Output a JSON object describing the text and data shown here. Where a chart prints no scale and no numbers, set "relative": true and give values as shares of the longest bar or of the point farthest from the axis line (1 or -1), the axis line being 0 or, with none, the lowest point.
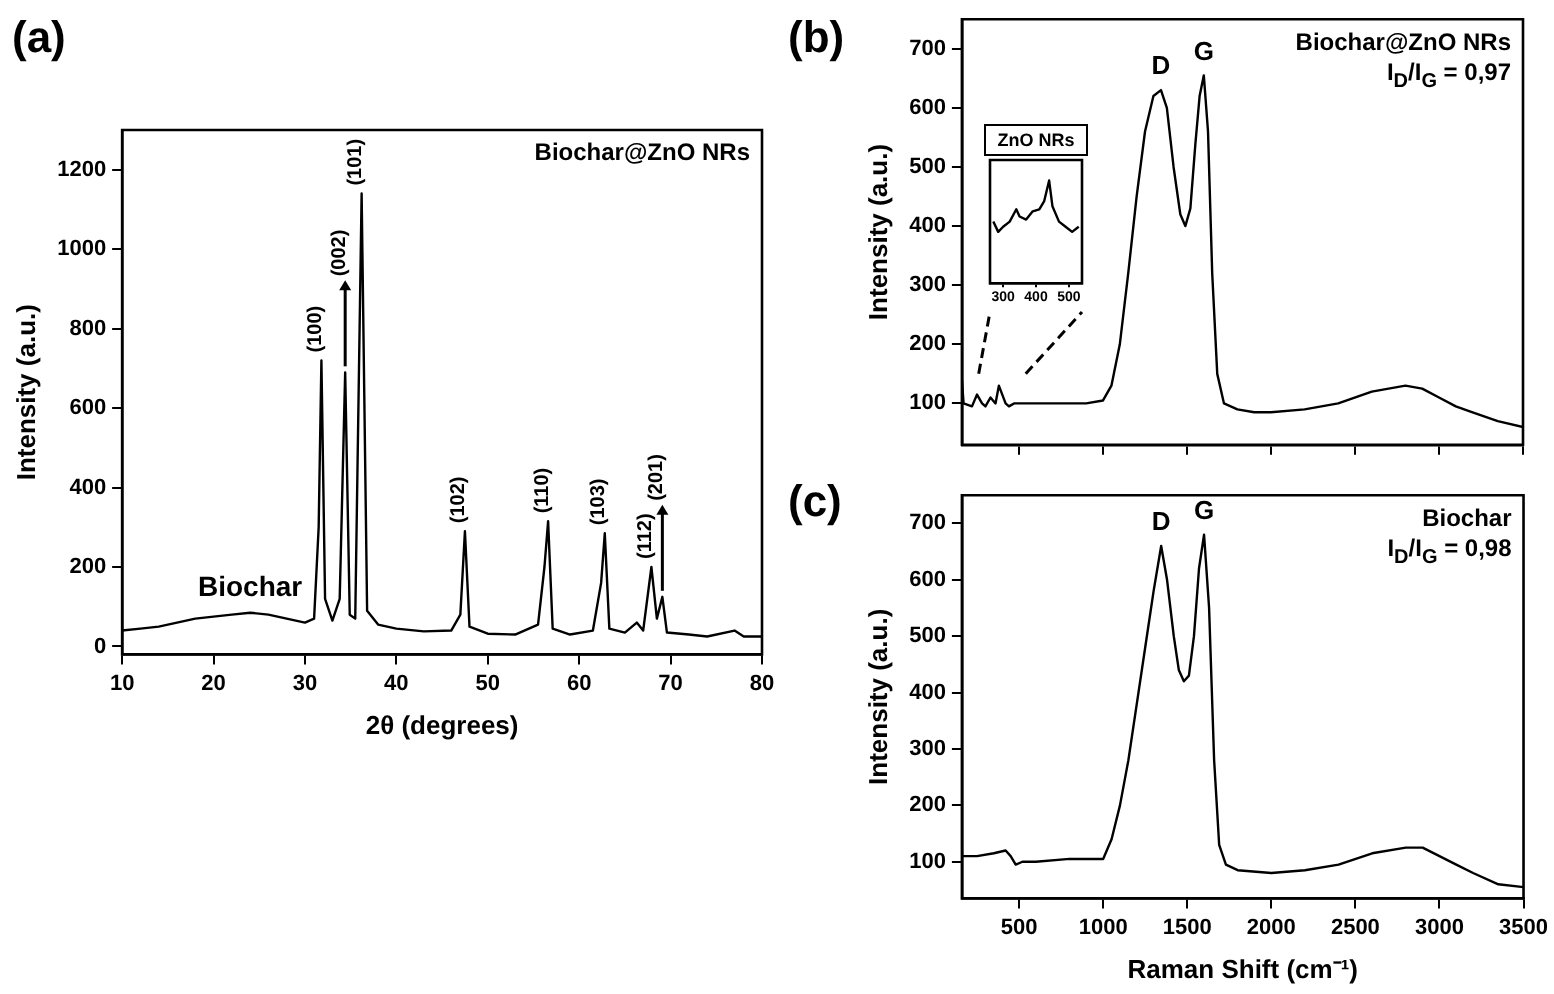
{
  "chart_data": [
    {
      "type": "line",
      "title": "(a)",
      "xlabel": "2θ (degrees)",
      "ylabel": "Intensity (a.u.)",
      "xlim": [
        10,
        80
      ],
      "xticks": [
        10,
        20,
        30,
        40,
        50,
        60,
        70,
        80
      ],
      "ylim": [
        -20,
        1300
      ],
      "yticks": [
        0,
        200,
        400,
        600,
        800,
        1000,
        1200
      ],
      "x": [
        10,
        12,
        14,
        16,
        18,
        20,
        22,
        24,
        26,
        28,
        30,
        31,
        31.5,
        31.8,
        32.2,
        33,
        33.8,
        34.4,
        34.9,
        35.5,
        36.2,
        36.8,
        38,
        40,
        43,
        46,
        47,
        47.5,
        48,
        50,
        53,
        55.5,
        56.2,
        56.6,
        57.1,
        59,
        61.5,
        62.4,
        62.8,
        63.3,
        65,
        66.3,
        67,
        67.9,
        68.5,
        69.1,
        69.6,
        72,
        74,
        77,
        78,
        80
      ],
      "series": [
        {
          "color": "#000000",
          "values": [
            40,
            45,
            50,
            60,
            70,
            75,
            80,
            85,
            80,
            70,
            60,
            70,
            300,
            720,
            120,
            65,
            120,
            690,
            80,
            70,
            1140,
            90,
            55,
            45,
            38,
            40,
            80,
            290,
            50,
            32,
            30,
            55,
            200,
            315,
            45,
            30,
            40,
            160,
            285,
            45,
            35,
            60,
            40,
            200,
            70,
            125,
            35,
            30,
            25,
            40,
            25,
            25
          ]
        }
      ],
      "annotations": [
        "Biochar@ZnO NRs",
        {
          "text": "Biochar",
          "x": 24,
          "y": 85
        },
        {
          "text": "(100)",
          "x": 31.8,
          "y": 720
        },
        {
          "text": "(002)",
          "x": 34.4,
          "y": 690
        },
        {
          "text": "(101)",
          "x": 36.2,
          "y": 1140
        },
        {
          "text": "(102)",
          "x": 47.5,
          "y": 290
        },
        {
          "text": "(110)",
          "x": 56.6,
          "y": 315
        },
        {
          "text": "(103)",
          "x": 62.8,
          "y": 285
        },
        {
          "text": "(112)",
          "x": 67.9,
          "y": 200
        },
        {
          "text": "(201)",
          "x": 69.1,
          "y": 125
        }
      ]
    },
    {
      "type": "line",
      "title": "(b)",
      "ylabel": "Intensity (a.u.)",
      "xlim": [
        160,
        3500
      ],
      "xticks": [
        500,
        1000,
        1500,
        2000,
        2500,
        3000,
        3500
      ],
      "ylim": [
        30,
        750
      ],
      "yticks": [
        100,
        200,
        300,
        400,
        500,
        600,
        700
      ],
      "tick_labels": "y",
      "x": [
        160,
        170,
        220,
        250,
        280,
        300,
        330,
        360,
        380,
        420,
        440,
        470,
        500,
        600,
        700,
        800,
        900,
        1000,
        1050,
        1100,
        1150,
        1200,
        1250,
        1300,
        1345,
        1380,
        1420,
        1460,
        1490,
        1520,
        1550,
        1575,
        1600,
        1625,
        1650,
        1680,
        1720,
        1800,
        1900,
        2000,
        2200,
        2400,
        2600,
        2800,
        2900,
        3000,
        3100,
        3200,
        3350,
        3500
      ],
      "series": [
        {
          "color": "#000000",
          "values": [
            140,
            100,
            95,
            115,
            100,
            95,
            110,
            100,
            130,
            100,
            95,
            100,
            100,
            100,
            100,
            100,
            100,
            105,
            130,
            200,
            320,
            450,
            560,
            620,
            630,
            600,
            500,
            420,
            400,
            430,
            540,
            620,
            655,
            560,
            320,
            150,
            100,
            90,
            85,
            85,
            90,
            100,
            120,
            130,
            125,
            110,
            95,
            85,
            70,
            60
          ]
        }
      ],
      "annotations": [
        "Biochar@ZnO NRs",
        "I$_{D}$/I$_{G}$ = 0,97",
        {
          "text": "D",
          "x": 1345,
          "y": 630
        },
        {
          "text": "G",
          "x": 1600,
          "y": 655
        }
      ]
    },
    {
      "type": "line",
      "title": "ZnO NRs",
      "relative": true,
      "xlim": [
        260,
        540
      ],
      "xticks": [
        300,
        400,
        500
      ],
      "tick_labels": "x",
      "x": [
        270,
        285,
        300,
        320,
        340,
        350,
        370,
        390,
        410,
        425,
        440,
        450,
        470,
        490,
        510,
        530
      ],
      "series": [
        {
          "color": "#000000",
          "values": [
            0.6,
            0.5,
            0.55,
            0.6,
            0.72,
            0.65,
            0.62,
            0.7,
            0.72,
            0.8,
            1,
            0.75,
            0.6,
            0.55,
            0.5,
            0.55
          ]
        }
      ]
    },
    {
      "type": "line",
      "title": "(c)",
      "xlabel": "Raman Shift (cm⁻¹)",
      "ylabel": "Intensity (a.u.)",
      "xlim": [
        160,
        3500
      ],
      "xticks": [
        500,
        1000,
        1500,
        2000,
        2500,
        3000,
        3500
      ],
      "ylim": [
        35,
        750
      ],
      "yticks": [
        100,
        200,
        300,
        400,
        500,
        600,
        700
      ],
      "x": [
        160,
        250,
        350,
        420,
        450,
        480,
        520,
        600,
        800,
        1000,
        1050,
        1100,
        1150,
        1200,
        1250,
        1300,
        1345,
        1380,
        1420,
        1450,
        1480,
        1510,
        1540,
        1570,
        1600,
        1630,
        1660,
        1690,
        1730,
        1800,
        2000,
        2200,
        2400,
        2600,
        2800,
        2900,
        3000,
        3100,
        3200,
        3350,
        3500
      ],
      "series": [
        {
          "color": "#000000",
          "values": [
            110,
            110,
            115,
            120,
            110,
            95,
            100,
            100,
            105,
            105,
            140,
            200,
            280,
            380,
            480,
            580,
            660,
            600,
            500,
            440,
            420,
            430,
            500,
            620,
            680,
            550,
            280,
            130,
            95,
            85,
            80,
            85,
            95,
            115,
            125,
            125,
            110,
            95,
            80,
            60,
            55
          ]
        }
      ],
      "annotations": [
        "Biochar",
        "I$_{D}$/I$_{G}$ = 0,98",
        {
          "text": "D",
          "x": 1345,
          "y": 660
        },
        {
          "text": "G",
          "x": 1600,
          "y": 680
        }
      ]
    }
  ]
}
